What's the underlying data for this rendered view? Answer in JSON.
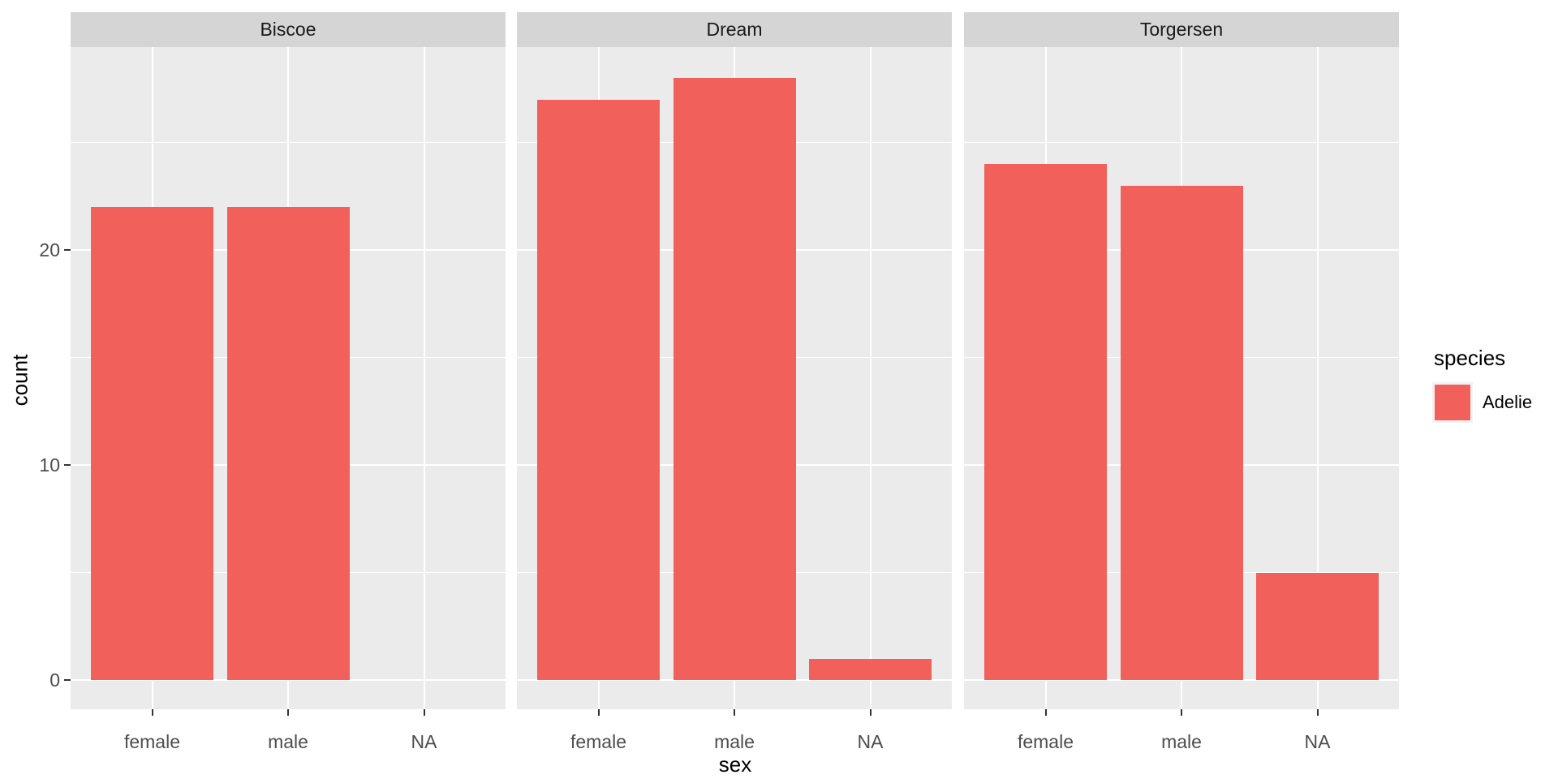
{
  "chart_data": {
    "type": "bar",
    "title": "",
    "xlabel": "sex",
    "ylabel": "count",
    "categories": [
      "female",
      "male",
      "NA"
    ],
    "series_name": "Adelie",
    "facets": [
      {
        "label": "Biscoe",
        "values": [
          22,
          22,
          0
        ]
      },
      {
        "label": "Dream",
        "values": [
          27,
          28,
          1
        ]
      },
      {
        "label": "Torgersen",
        "values": [
          24,
          23,
          5
        ]
      }
    ],
    "y_major_ticks": [
      0,
      10,
      20
    ],
    "y_minor_ticks": [
      5,
      15,
      25
    ],
    "ylim": [
      -1.4,
      29.4
    ],
    "grid": true,
    "legend": {
      "title": "species",
      "entries": [
        "Adelie"
      ],
      "position": "right"
    },
    "style": {
      "bar_color": "#F2605C",
      "panel_bg": "#EBEBEB",
      "strip_bg": "#D5D5D5",
      "grid_color": "#FFFFFF",
      "legend_key_bg": "#F2F2F2",
      "tick_text_color": "#4D4D4D",
      "text_color": "#1A1A1A"
    }
  }
}
